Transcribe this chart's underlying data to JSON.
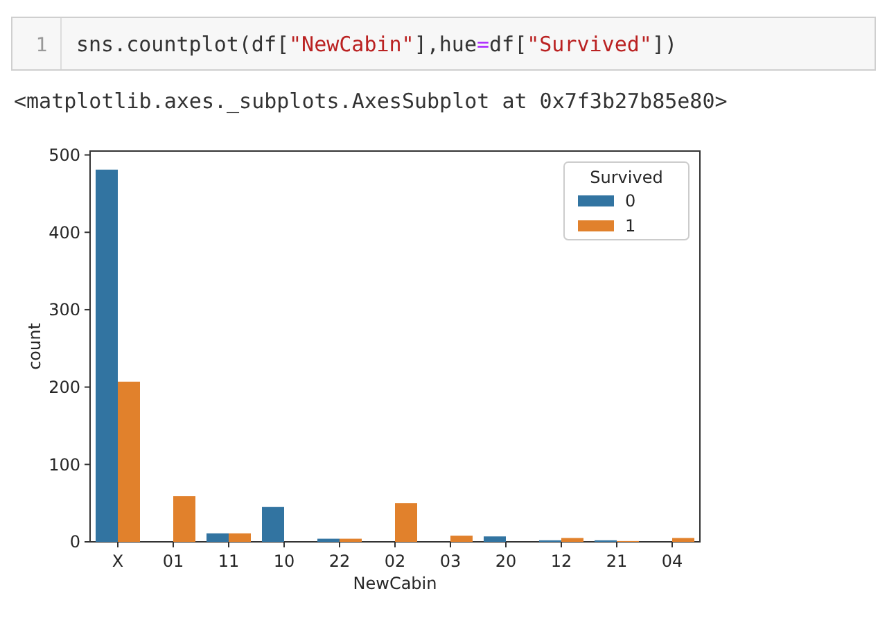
{
  "chart_data": {
    "type": "bar",
    "xlabel": "NewCabin",
    "ylabel": "count",
    "legend_title": "Survived",
    "legend": "top right",
    "grid": false,
    "annotations": [
      "1",
      "sns.countplot(df[\"NewCabin\"],hue=df[\"Survived\"])",
      "<matplotlib.axes._subplots.AxesSubplot at 0x7f3b27b85e80>"
    ],
    "categories": [
      "X",
      "01",
      "11",
      "10",
      "22",
      "02",
      "03",
      "20",
      "12",
      "21",
      "04"
    ],
    "ylim": [
      0,
      505
    ],
    "yticks": [
      0,
      100,
      200,
      300,
      400,
      500
    ],
    "series": [
      {
        "name": "0",
        "color": "#3274a1",
        "values": [
          481,
          0,
          11,
          45,
          4,
          0,
          0,
          7,
          2,
          2,
          0
        ]
      },
      {
        "name": "1",
        "color": "#e1812c",
        "values": [
          207,
          59,
          11,
          0,
          4,
          50,
          8,
          0,
          5,
          1,
          5
        ]
      }
    ]
  }
}
